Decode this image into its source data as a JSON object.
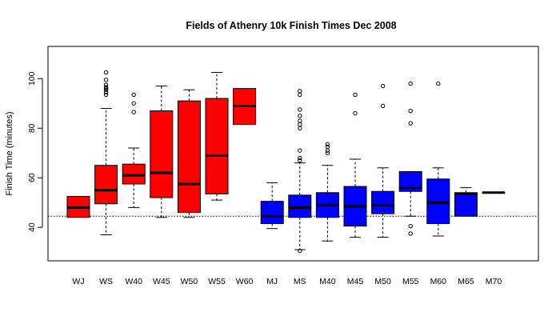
{
  "chart_data": {
    "type": "boxplot",
    "title": "Fields of Athenry 10k Finish Times Dec 2008",
    "xlabel": "",
    "ylabel": "Finish Time (minutes)",
    "ylim": [
      26.5,
      113
    ],
    "yticks": [
      40,
      60,
      80,
      100
    ],
    "reference_line": {
      "y": 44.5,
      "style": "dotted"
    },
    "colors": {
      "women": "#ff0000",
      "men": "#0000ff"
    },
    "categories": [
      "WJ",
      "WS",
      "W40",
      "W45",
      "W50",
      "W55",
      "W60",
      "MJ",
      "MS",
      "M40",
      "M45",
      "M50",
      "M55",
      "M60",
      "M65",
      "M70"
    ],
    "groups": [
      "women",
      "women",
      "women",
      "women",
      "women",
      "women",
      "women",
      "men",
      "men",
      "men",
      "men",
      "men",
      "men",
      "men",
      "men",
      "men"
    ],
    "boxes": [
      {
        "whisker_low": 44,
        "q1": 44,
        "median": 48,
        "q3": 52.5,
        "whisker_high": 52.5,
        "outliers": []
      },
      {
        "whisker_low": 37,
        "q1": 49.5,
        "median": 55,
        "q3": 65,
        "whisker_high": 88,
        "outliers": [
          93.5,
          94.5,
          95.5,
          96,
          96.5,
          97.5,
          99.5,
          102.5
        ]
      },
      {
        "whisker_low": 48,
        "q1": 57.5,
        "median": 61,
        "q3": 65.5,
        "whisker_high": 72,
        "outliers": [
          86.5,
          90,
          93.5
        ]
      },
      {
        "whisker_low": 44,
        "q1": 52,
        "median": 62,
        "q3": 87,
        "whisker_high": 97,
        "outliers": []
      },
      {
        "whisker_low": 44,
        "q1": 46,
        "median": 57.5,
        "q3": 91,
        "whisker_high": 95.5,
        "outliers": []
      },
      {
        "whisker_low": 51,
        "q1": 53.5,
        "median": 69,
        "q3": 92,
        "whisker_high": 102.5,
        "outliers": []
      },
      {
        "whisker_low": 81.5,
        "q1": 81.5,
        "median": 89,
        "q3": 96,
        "whisker_high": 96,
        "outliers": []
      },
      {
        "whisker_low": 39.5,
        "q1": 41.5,
        "median": 44.5,
        "q3": 50.5,
        "whisker_high": 58,
        "outliers": []
      },
      {
        "whisker_low": 31,
        "q1": 44,
        "median": 48,
        "q3": 53,
        "whisker_high": 66,
        "outliers": [
          30.5,
          67,
          68,
          71,
          80,
          81.5,
          83,
          85,
          87.5,
          93.5,
          95
        ]
      },
      {
        "whisker_low": 34.5,
        "q1": 44,
        "median": 49,
        "q3": 54,
        "whisker_high": 65,
        "outliers": [
          70,
          71,
          72.5,
          73.5
        ]
      },
      {
        "whisker_low": 36,
        "q1": 40.5,
        "median": 48.5,
        "q3": 56.5,
        "whisker_high": 67.5,
        "outliers": [
          86,
          93.5
        ]
      },
      {
        "whisker_low": 36,
        "q1": 45.5,
        "median": 49,
        "q3": 54.5,
        "whisker_high": 64,
        "outliers": [
          89,
          97
        ]
      },
      {
        "whisker_low": 44.5,
        "q1": 54.5,
        "median": 56,
        "q3": 62.5,
        "whisker_high": 62.5,
        "outliers": [
          37.5,
          40.5,
          82,
          87,
          98
        ]
      },
      {
        "whisker_low": 36.5,
        "q1": 41.5,
        "median": 50,
        "q3": 59.5,
        "whisker_high": 64,
        "outliers": [
          98
        ]
      },
      {
        "whisker_low": 44.5,
        "q1": 44.5,
        "median": 53.5,
        "q3": 54,
        "whisker_high": 56,
        "outliers": []
      },
      {
        "whisker_low": 54,
        "q1": 54,
        "median": 54,
        "q3": 54,
        "whisker_high": 54,
        "outliers": []
      }
    ]
  }
}
